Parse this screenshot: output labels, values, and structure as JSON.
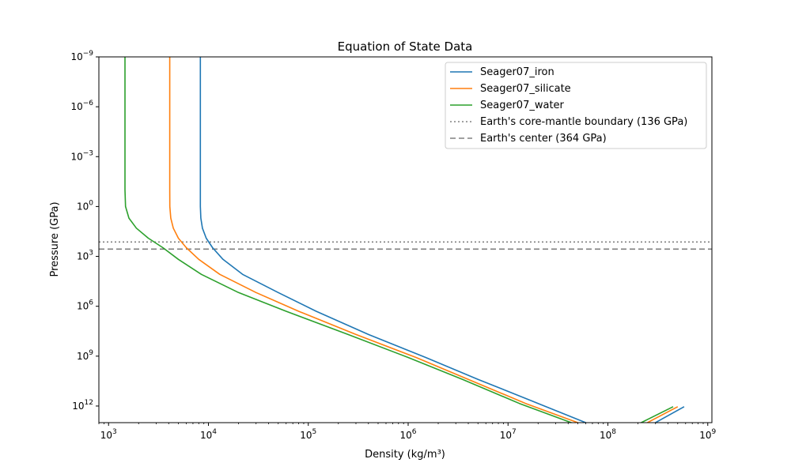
{
  "chart_data": {
    "type": "line",
    "title": "Equation of State Data",
    "xlabel": "Density (kg/m³)",
    "ylabel": "Pressure (GPa)",
    "x_scale": "log",
    "y_scale": "log",
    "y_inverted": true,
    "xlim": [
      800,
      1100000000.0
    ],
    "ylim": [
      10000000000000.0,
      1e-09
    ],
    "x_ticks": [
      {
        "value": 1000.0,
        "base": "10",
        "exp": "3"
      },
      {
        "value": 10000.0,
        "base": "10",
        "exp": "4"
      },
      {
        "value": 100000.0,
        "base": "10",
        "exp": "5"
      },
      {
        "value": 1000000.0,
        "base": "10",
        "exp": "6"
      },
      {
        "value": 10000000.0,
        "base": "10",
        "exp": "7"
      },
      {
        "value": 100000000.0,
        "base": "10",
        "exp": "8"
      },
      {
        "value": 1000000000.0,
        "base": "10",
        "exp": "9"
      }
    ],
    "y_ticks": [
      {
        "value": 1e-09,
        "base": "10",
        "exp": "−9"
      },
      {
        "value": 1e-06,
        "base": "10",
        "exp": "−6"
      },
      {
        "value": 0.001,
        "base": "10",
        "exp": "−3"
      },
      {
        "value": 1.0,
        "base": "10",
        "exp": "0"
      },
      {
        "value": 1000.0,
        "base": "10",
        "exp": "3"
      },
      {
        "value": 1000000.0,
        "base": "10",
        "exp": "6"
      },
      {
        "value": 1000000000.0,
        "base": "10",
        "exp": "9"
      },
      {
        "value": 1000000000000.0,
        "base": "10",
        "exp": "12"
      }
    ],
    "series": [
      {
        "name": "Seager07_iron",
        "color": "#1f77b4",
        "points": [
          [
            8300,
            1e-09
          ],
          [
            8300,
            1e-06
          ],
          [
            8300,
            0.001
          ],
          [
            8300,
            0.1
          ],
          [
            8310,
            1
          ],
          [
            8400,
            5
          ],
          [
            8700,
            20
          ],
          [
            9500,
            80
          ],
          [
            11000,
            300
          ],
          [
            14000,
            1500
          ],
          [
            22000,
            12000
          ],
          [
            50000,
            150000.0
          ],
          [
            120000.0,
            2000000.0
          ],
          [
            400000.0,
            50000000.0
          ],
          [
            1500000.0,
            1200000000.0
          ],
          [
            5000000.0,
            25000000000.0
          ],
          [
            20000000.0,
            700000000000.0
          ],
          [
            60000000.0,
            10000000000000.0
          ],
          [
            150000000.0,
            100000000000000.0
          ],
          [
            580000000.0,
            1100000000000.0
          ]
        ]
      },
      {
        "name": "Seager07_silicate",
        "color": "#ff7f0e",
        "points": [
          [
            4100,
            1e-09
          ],
          [
            4100,
            1e-06
          ],
          [
            4100,
            0.001
          ],
          [
            4100,
            0.1
          ],
          [
            4110,
            1
          ],
          [
            4200,
            5
          ],
          [
            4450,
            20
          ],
          [
            5000,
            80
          ],
          [
            6000,
            300
          ],
          [
            8000,
            1500
          ],
          [
            13000,
            12000
          ],
          [
            30000,
            150000.0
          ],
          [
            80000,
            2000000.0
          ],
          [
            300000.0,
            50000000.0
          ],
          [
            1200000.0,
            1200000000.0
          ],
          [
            4000000.0,
            25000000000.0
          ],
          [
            15000000.0,
            700000000000.0
          ],
          [
            50000000.0,
            10000000000000.0
          ],
          [
            120000000.0,
            100000000000000.0
          ],
          [
            500000000.0,
            1100000000000.0
          ]
        ]
      },
      {
        "name": "Seager07_water",
        "color": "#2ca02c",
        "points": [
          [
            1460,
            1e-09
          ],
          [
            1460,
            1e-06
          ],
          [
            1460,
            0.001
          ],
          [
            1460,
            0.1
          ],
          [
            1480,
            1
          ],
          [
            1600,
            5
          ],
          [
            1900,
            20
          ],
          [
            2500,
            80
          ],
          [
            3500,
            300
          ],
          [
            5000,
            1500
          ],
          [
            8500,
            12000
          ],
          [
            20000,
            150000.0
          ],
          [
            60000,
            2000000.0
          ],
          [
            250000.0,
            50000000.0
          ],
          [
            1000000.0,
            1200000000.0
          ],
          [
            3500000.0,
            25000000000.0
          ],
          [
            13000000.0,
            700000000000.0
          ],
          [
            43000000.0,
            10000000000000.0
          ],
          [
            100000000.0,
            100000000000000.0
          ],
          [
            450000000.0,
            1100000000000.0
          ]
        ]
      }
    ],
    "reference_lines": [
      {
        "name": "Earth's core-mantle boundary (136 GPa)",
        "value": 136,
        "style": "dotted",
        "color": "#808080"
      },
      {
        "name": "Earth's center (364 GPa)",
        "value": 364,
        "style": "dashed",
        "color": "#808080"
      }
    ],
    "legend_position": "top-right",
    "grid": false
  }
}
